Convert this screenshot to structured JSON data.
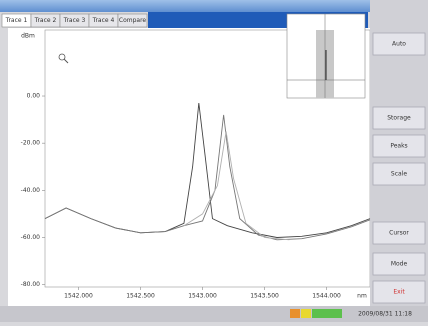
{
  "window": {
    "tabs": [
      "Trace 1",
      "Trace 2",
      "Trace 3",
      "Trace 4",
      "Compare"
    ],
    "nav_button": "◄►"
  },
  "plot": {
    "y_unit": "dBm",
    "x_unit": "nm",
    "xlim": [
      1541.73,
      1544.35
    ],
    "ylim": [
      -81,
      28
    ],
    "yticks": [
      {
        "value": 0,
        "label": "0.00"
      },
      {
        "value": -20,
        "label": "-20.00"
      },
      {
        "value": -40,
        "label": "-40.00"
      },
      {
        "value": -60,
        "label": "-60.00"
      },
      {
        "value": -80,
        "label": "-80.00"
      }
    ],
    "xticks": [
      {
        "value": 1542,
        "label": "1542.000"
      },
      {
        "value": 1542.5,
        "label": "1542.500"
      },
      {
        "value": 1543,
        "label": "1543.000"
      },
      {
        "value": 1543.5,
        "label": "1543.500"
      },
      {
        "value": 1544,
        "label": "1544.000"
      }
    ],
    "traces": [
      {
        "color": "#444444",
        "x": [
          1541.73,
          1541.9,
          1542.1,
          1542.3,
          1542.5,
          1542.7,
          1542.85,
          1542.92,
          1542.97,
          1543.02,
          1543.08,
          1543.2,
          1543.4,
          1543.6,
          1543.8,
          1544.0,
          1544.2,
          1544.35
        ],
        "y": [
          -52,
          -47.5,
          -52,
          -56,
          -58,
          -57.5,
          -54,
          -30,
          -3,
          -25,
          -52,
          -55,
          -58,
          -60,
          -59.5,
          -58,
          -55,
          -52
        ]
      },
      {
        "color": "#777777",
        "x": [
          1541.73,
          1541.9,
          1542.1,
          1542.3,
          1542.5,
          1542.7,
          1542.85,
          1543.0,
          1543.1,
          1543.17,
          1543.22,
          1543.3,
          1543.45,
          1543.6,
          1543.8,
          1544.0,
          1544.2,
          1544.35
        ],
        "y": [
          -52,
          -47.5,
          -52,
          -56,
          -58,
          -57.5,
          -55,
          -53,
          -40,
          -8,
          -30,
          -52,
          -59,
          -61,
          -60.5,
          -58.5,
          -55.5,
          -52.5
        ]
      },
      {
        "color": "#b0b0b0",
        "x": [
          1542.85,
          1543.0,
          1543.12,
          1543.19,
          1543.25,
          1543.35,
          1543.5,
          1543.7
        ],
        "y": [
          -55,
          -50,
          -38,
          -15,
          -35,
          -54,
          -60,
          -61
        ]
      }
    ]
  },
  "buttons": [
    "Auto",
    "Storage",
    "Peaks",
    "Scale",
    "Cursor",
    "Mode",
    "Exit"
  ],
  "status": {
    "timestamp": "2009/08/31 11:18"
  }
}
